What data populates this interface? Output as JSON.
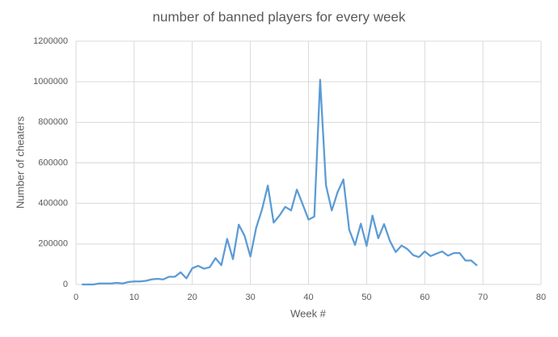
{
  "chart_data": {
    "type": "line",
    "title": "number of banned players for every week",
    "x_label": "Week #",
    "y_label": "Number of cheaters",
    "x": [
      1,
      2,
      3,
      4,
      5,
      6,
      7,
      8,
      9,
      10,
      11,
      12,
      13,
      14,
      15,
      16,
      17,
      18,
      19,
      20,
      21,
      22,
      23,
      24,
      25,
      26,
      27,
      28,
      29,
      30,
      31,
      32,
      33,
      34,
      35,
      36,
      37,
      38,
      39,
      40,
      41,
      42,
      43,
      44,
      45,
      46,
      47,
      48,
      49,
      50,
      51,
      52,
      53,
      54,
      55,
      56,
      57,
      58,
      59,
      60,
      61,
      62,
      63,
      64,
      65,
      66,
      67,
      68,
      69
    ],
    "series": [
      {
        "color": "#5b9bd5",
        "values": [
          0,
          0,
          0,
          5000,
          5000,
          5000,
          8000,
          5000,
          12000,
          15000,
          15000,
          18000,
          25000,
          28000,
          25000,
          38000,
          38000,
          60000,
          30000,
          80000,
          92000,
          78000,
          85000,
          130000,
          95000,
          225000,
          125000,
          295000,
          240000,
          138000,
          280000,
          370000,
          488000,
          305000,
          340000,
          383000,
          365000,
          468000,
          395000,
          320000,
          335000,
          1010000,
          490000,
          365000,
          455000,
          518000,
          270000,
          195000,
          300000,
          190000,
          340000,
          228000,
          298000,
          215000,
          160000,
          192000,
          175000,
          145000,
          135000,
          163000,
          140000,
          152000,
          163000,
          142000,
          155000,
          155000,
          118000,
          118000,
          93000
        ]
      }
    ],
    "xlim": [
      0,
      80
    ],
    "xticks": [
      0,
      10,
      20,
      30,
      40,
      50,
      60,
      70,
      80
    ],
    "ylim": [
      0,
      1200000
    ],
    "yticks": [
      0,
      200000,
      400000,
      600000,
      800000,
      1000000,
      1200000
    ],
    "grid": true
  }
}
